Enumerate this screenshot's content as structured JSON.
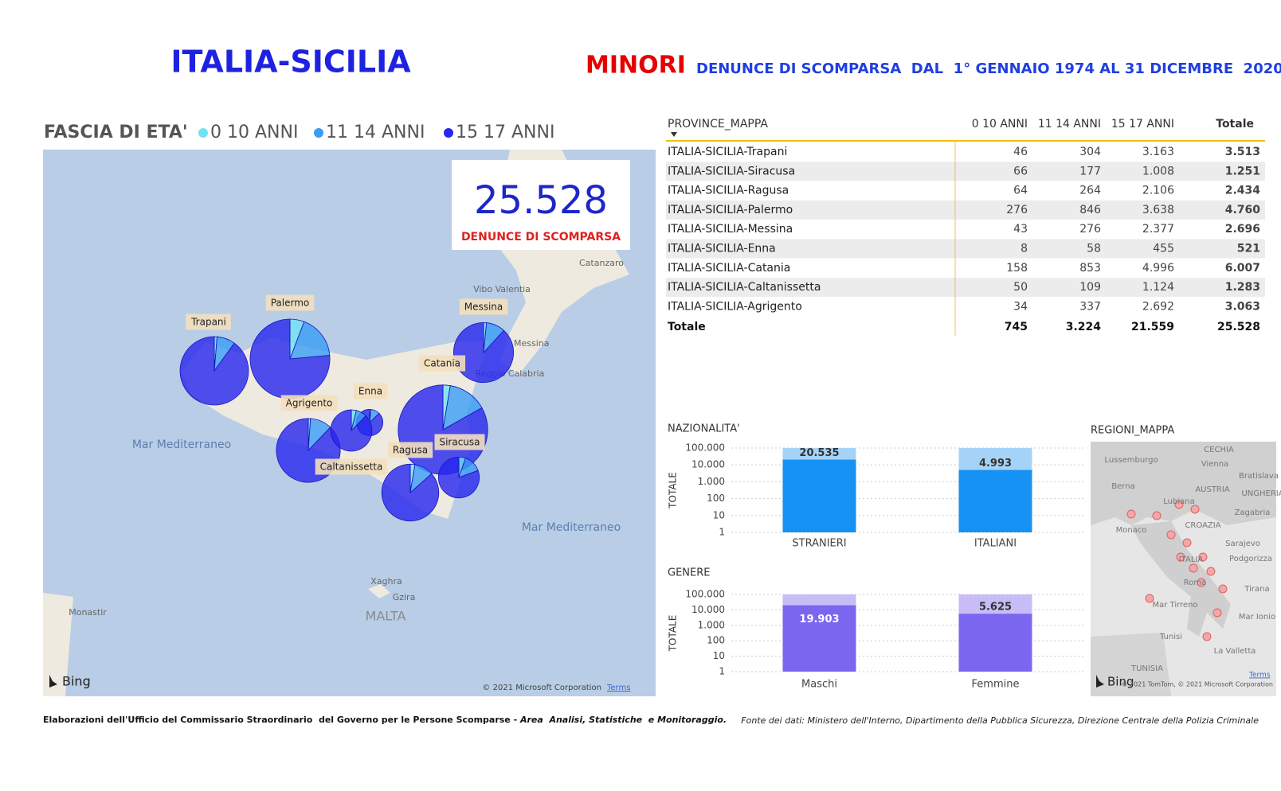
{
  "header": {
    "title": "ITALIA-SICILIA",
    "highlight": "MINORI",
    "subtitle": "DENUNCE DI SCOMPARSA  DAL  1° GENNAIO 1974 AL 31 DICEMBRE  2020"
  },
  "card": {
    "value": "25.528",
    "label": "DENUNCE DI SCOMPARSA"
  },
  "map": {
    "places": [
      "Catanzaro",
      "Vibo Valentia",
      "Messina",
      "Reggio Calabria",
      "Mar Mediterraneo",
      "Mar Mediterraneo",
      "Xaghra",
      "Gzira",
      "MALTA",
      "Monastir"
    ],
    "bing": "Bing",
    "attribution": "© 2021 Microsoft Corporation",
    "terms": "Terms"
  },
  "table": {
    "columns": [
      "PROVINCE_MAPPA",
      "0 10 ANNI",
      "11 14 ANNI",
      "15 17 ANNI",
      "Totale"
    ],
    "rows": [
      [
        "ITALIA-SICILIA-Trapani",
        "46",
        "304",
        "3.163",
        "3.513"
      ],
      [
        "ITALIA-SICILIA-Siracusa",
        "66",
        "177",
        "1.008",
        "1.251"
      ],
      [
        "ITALIA-SICILIA-Ragusa",
        "64",
        "264",
        "2.106",
        "2.434"
      ],
      [
        "ITALIA-SICILIA-Palermo",
        "276",
        "846",
        "3.638",
        "4.760"
      ],
      [
        "ITALIA-SICILIA-Messina",
        "43",
        "276",
        "2.377",
        "2.696"
      ],
      [
        "ITALIA-SICILIA-Enna",
        "8",
        "58",
        "455",
        "521"
      ],
      [
        "ITALIA-SICILIA-Catania",
        "158",
        "853",
        "4.996",
        "6.007"
      ],
      [
        "ITALIA-SICILIA-Caltanissetta",
        "50",
        "109",
        "1.124",
        "1.283"
      ],
      [
        "ITALIA-SICILIA-Agrigento",
        "34",
        "337",
        "2.692",
        "3.063"
      ]
    ],
    "total": [
      "Totale",
      "745",
      "3.224",
      "21.559",
      "25.528"
    ]
  },
  "region_map": {
    "title": "REGIONI_MAPPA",
    "places": [
      "Lussemburgo",
      "CECHIA",
      "Vienna",
      "Bratislava",
      "Berna",
      "AUSTRIA",
      "UNGHERIA",
      "Lubiana",
      "Zagabria",
      "CROAZIA",
      "Monaco",
      "ITALIA",
      "Sarajevo",
      "Podgorizza",
      "Roma",
      "Tirana",
      "Mar Tirreno",
      "Mar Ionio",
      "Tunisi",
      "TUNISIA",
      "La Valletta"
    ],
    "bing": "Bing",
    "attribution": "© 2021 TomTom, © 2021 Microsoft Corporation",
    "terms": "Terms"
  },
  "footer": {
    "left": "Elaborazioni dell'Ufficio del Commissario Straordinario  del Governo per le Persone Scomparse - ",
    "left_italic": "Area  Analisi, Statistiche  e Monitoraggio.",
    "right": "Fonte dei dati: Ministero dell'Interno, Dipartimento della Pubblica Sicurezza, Direzione Centrale della Polizia Criminale"
  },
  "chart_data": [
    {
      "type": "pie",
      "title": "FASCIA DI ETA'",
      "categories": [
        "0 10 ANNI",
        "11 14 ANNI",
        "15 17 ANNI"
      ],
      "colors": [
        "#6fe3f0",
        "#3a9cf5",
        "#2626ee"
      ],
      "series": [
        {
          "name": "Trapani",
          "values": [
            46,
            304,
            3163
          ]
        },
        {
          "name": "Palermo",
          "values": [
            276,
            846,
            3638
          ]
        },
        {
          "name": "Messina",
          "values": [
            43,
            276,
            2377
          ]
        },
        {
          "name": "Catania",
          "values": [
            158,
            853,
            4996
          ]
        },
        {
          "name": "Enna",
          "values": [
            8,
            58,
            455
          ]
        },
        {
          "name": "Agrigento",
          "values": [
            34,
            337,
            2692
          ]
        },
        {
          "name": "Siracusa",
          "values": [
            66,
            177,
            1008
          ]
        },
        {
          "name": "Ragusa",
          "values": [
            64,
            264,
            2106
          ]
        },
        {
          "name": "Caltanissetta",
          "values": [
            50,
            109,
            1124
          ]
        }
      ]
    },
    {
      "type": "bar",
      "title": "NAZIONALITA'",
      "ylabel": "TOTALE",
      "categories": [
        "STRANIERI",
        "ITALIANI"
      ],
      "values": [
        20535,
        4993
      ],
      "value_labels": [
        "20.535",
        "4.993"
      ],
      "color": "#1691f4",
      "light_color": "#a5d3f8",
      "log_scale": true,
      "grid": true,
      "ylim": [
        1,
        100000
      ],
      "yticks": [
        1,
        10,
        100,
        {
          "value": 1000,
          "label": "1.000"
        },
        {
          "value": 10000,
          "label": "10.000"
        },
        {
          "value": 100000,
          "label": "100.000"
        }
      ]
    },
    {
      "type": "bar",
      "title": "GENERE",
      "ylabel": "TOTALE",
      "categories": [
        "Maschi",
        "Femmine"
      ],
      "values": [
        19903,
        5625
      ],
      "value_labels": [
        "19.903",
        "5.625"
      ],
      "color": "#7b66f0",
      "light_color": "#c7bcf6",
      "log_scale": true,
      "grid": true,
      "ylim": [
        1,
        100000
      ],
      "yticks": [
        1,
        10,
        100,
        {
          "value": 1000,
          "label": "1.000"
        },
        {
          "value": 10000,
          "label": "10.000"
        },
        {
          "value": 100000,
          "label": "100.000"
        }
      ]
    }
  ]
}
